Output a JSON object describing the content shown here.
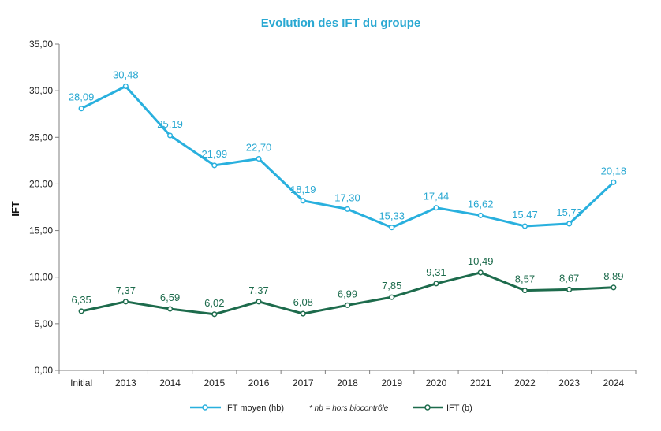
{
  "chart_data": {
    "type": "line",
    "title": "Evolution des IFT du groupe",
    "xlabel": "",
    "ylabel": "IFT",
    "ylim": [
      0,
      35
    ],
    "y_ticks": [
      "0,00",
      "5,00",
      "10,00",
      "15,00",
      "20,00",
      "25,00",
      "30,00",
      "35,00"
    ],
    "categories": [
      "Initial",
      "2013",
      "2014",
      "2015",
      "2016",
      "2017",
      "2018",
      "2019",
      "2020",
      "2021",
      "2022",
      "2023",
      "2024"
    ],
    "series": [
      {
        "name": "IFT moyen (hb)",
        "color": "#29b0de",
        "label_color": "#29a8d2",
        "values": [
          28.09,
          30.48,
          25.19,
          21.99,
          22.7,
          18.19,
          17.3,
          15.33,
          17.44,
          16.62,
          15.47,
          15.73,
          20.18
        ],
        "labels": [
          "28,09",
          "30,48",
          "25,19",
          "21,99",
          "22,70",
          "18,19",
          "17,30",
          "15,33",
          "17,44",
          "16,62",
          "15,47",
          "15,73",
          "20,18"
        ]
      },
      {
        "name": "IFT (b)",
        "color": "#1d6b4c",
        "label_color": "#1d6b4c",
        "values": [
          6.35,
          7.37,
          6.59,
          6.02,
          7.37,
          6.08,
          6.99,
          7.85,
          9.31,
          10.49,
          8.57,
          8.67,
          8.89
        ],
        "labels": [
          "6,35",
          "7,37",
          "6,59",
          "6,02",
          "7,37",
          "6,08",
          "6,99",
          "7,85",
          "9,31",
          "10,49",
          "8,57",
          "8,67",
          "8,89"
        ]
      }
    ],
    "legend_note": "* hb = hors biocontrôle",
    "legend_position": "bottom",
    "grid": false
  }
}
